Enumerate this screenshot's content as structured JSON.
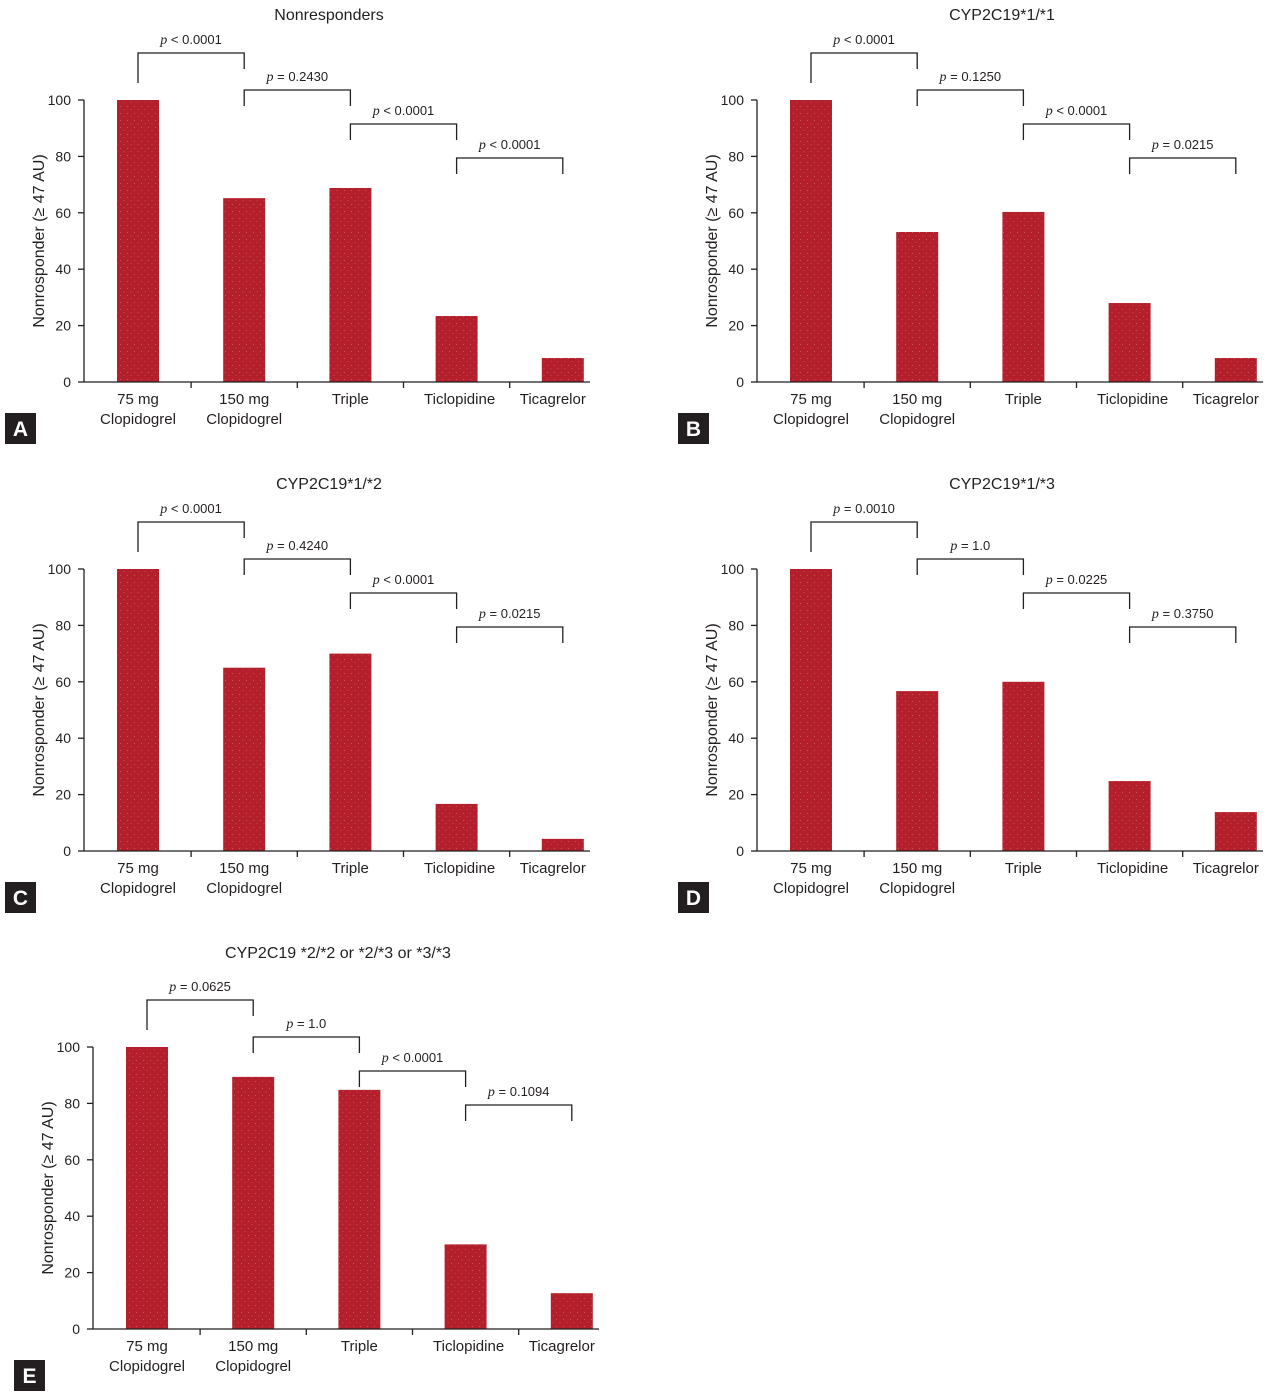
{
  "colors": {
    "bar": "#b3202b",
    "bar_speckle": "#d35c65",
    "axis": "#231f20",
    "panel_box": "#231f20",
    "panel_letter": "#ffffff"
  },
  "chart_data": [
    {
      "panel": "A",
      "type": "bar",
      "title": "Nonresponders",
      "xlabel": "",
      "ylabel": "Nonrosponder (≥ 47 AU)",
      "ylim": [
        0,
        100
      ],
      "yticks": [
        0,
        20,
        40,
        60,
        80,
        100
      ],
      "categories": [
        [
          "75 mg",
          "Clopidogrel"
        ],
        [
          "150 mg",
          "Clopidogrel"
        ],
        [
          "Triple"
        ],
        [
          "Ticlopidine"
        ],
        [
          "Ticagrelor"
        ]
      ],
      "values": [
        100,
        65.2,
        68.8,
        23.4,
        8.5
      ],
      "comparisons": [
        {
          "between": [
            0,
            1
          ],
          "p": "p < 0.0001"
        },
        {
          "between": [
            1,
            2
          ],
          "p": "p = 0.2430"
        },
        {
          "between": [
            2,
            3
          ],
          "p": "p < 0.0001"
        },
        {
          "between": [
            3,
            4
          ],
          "p": "p < 0.0001"
        }
      ]
    },
    {
      "panel": "B",
      "type": "bar",
      "title": "CYP2C19*1/*1",
      "xlabel": "",
      "ylabel": "Nonrosponder (≥ 47 AU)",
      "ylim": [
        0,
        100
      ],
      "yticks": [
        0,
        20,
        40,
        60,
        80,
        100
      ],
      "categories": [
        [
          "75 mg",
          "Clopidogrel"
        ],
        [
          "150 mg",
          "Clopidogrel"
        ],
        [
          "Triple"
        ],
        [
          "Ticlopidine"
        ],
        [
          "Ticagrelor"
        ]
      ],
      "values": [
        100,
        53.2,
        60.3,
        28,
        8.5
      ],
      "comparisons": [
        {
          "between": [
            0,
            1
          ],
          "p": "p < 0.0001"
        },
        {
          "between": [
            1,
            2
          ],
          "p": "p = 0.1250"
        },
        {
          "between": [
            2,
            3
          ],
          "p": "p < 0.0001"
        },
        {
          "between": [
            3,
            4
          ],
          "p": "p = 0.0215"
        }
      ]
    },
    {
      "panel": "C",
      "type": "bar",
      "title": "CYP2C19*1/*2",
      "xlabel": "",
      "ylabel": "Nonrosponder (≥ 47 AU)",
      "ylim": [
        0,
        100
      ],
      "yticks": [
        0,
        20,
        40,
        60,
        80,
        100
      ],
      "categories": [
        [
          "75 mg",
          "Clopidogrel"
        ],
        [
          "150 mg",
          "Clopidogrel"
        ],
        [
          "Triple"
        ],
        [
          "Ticlopidine"
        ],
        [
          "Ticagrelor"
        ]
      ],
      "values": [
        100,
        65,
        70,
        16.7,
        4.3
      ],
      "comparisons": [
        {
          "between": [
            0,
            1
          ],
          "p": "p < 0.0001"
        },
        {
          "between": [
            1,
            2
          ],
          "p": "p = 0.4240"
        },
        {
          "between": [
            2,
            3
          ],
          "p": "p < 0.0001"
        },
        {
          "between": [
            3,
            4
          ],
          "p": "p = 0.0215"
        }
      ]
    },
    {
      "panel": "D",
      "type": "bar",
      "title": "CYP2C19*1/*3",
      "xlabel": "",
      "ylabel": "Nonrosponder (≥ 47 AU)",
      "ylim": [
        0,
        100
      ],
      "yticks": [
        0,
        20,
        40,
        60,
        80,
        100
      ],
      "categories": [
        [
          "75 mg",
          "Clopidogrel"
        ],
        [
          "150 mg",
          "Clopidogrel"
        ],
        [
          "Triple"
        ],
        [
          "Ticlopidine"
        ],
        [
          "Ticagrelor"
        ]
      ],
      "values": [
        100,
        56.7,
        60,
        24.8,
        13.8
      ],
      "comparisons": [
        {
          "between": [
            0,
            1
          ],
          "p": "p = 0.0010"
        },
        {
          "between": [
            1,
            2
          ],
          "p": "p = 1.0"
        },
        {
          "between": [
            2,
            3
          ],
          "p": "p = 0.0225"
        },
        {
          "between": [
            3,
            4
          ],
          "p": "p = 0.3750"
        }
      ]
    },
    {
      "panel": "E",
      "type": "bar",
      "title": "CYP2C19 *2/*2 or *2/*3 or *3/*3",
      "xlabel": "",
      "ylabel": "Nonrosponder (≥ 47 AU)",
      "ylim": [
        0,
        100
      ],
      "yticks": [
        0,
        20,
        40,
        60,
        80,
        100
      ],
      "categories": [
        [
          "75 mg",
          "Clopidogrel"
        ],
        [
          "150 mg",
          "Clopidogrel"
        ],
        [
          "Triple"
        ],
        [
          "Ticlopidine"
        ],
        [
          "Ticagrelor"
        ]
      ],
      "values": [
        100,
        89.4,
        84.8,
        30,
        12.7
      ],
      "comparisons": [
        {
          "between": [
            0,
            1
          ],
          "p": "p = 0.0625"
        },
        {
          "between": [
            1,
            2
          ],
          "p": "p = 1.0"
        },
        {
          "between": [
            2,
            3
          ],
          "p": "p < 0.0001"
        },
        {
          "between": [
            3,
            4
          ],
          "p": "p = 0.1094"
        }
      ]
    }
  ]
}
